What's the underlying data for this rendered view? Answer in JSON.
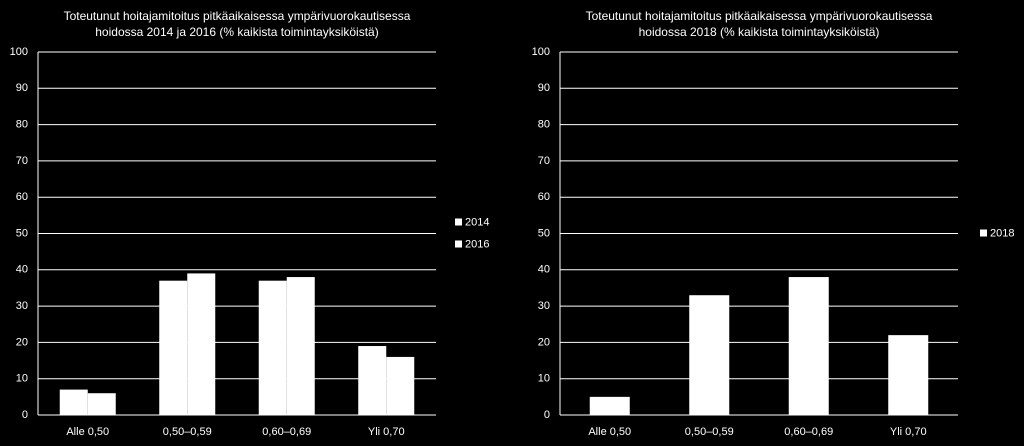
{
  "chart_data": [
    {
      "type": "bar",
      "title": [
        "Toteutunut hoitajamitoitus pitkäaikaisessa ympärivuorokautisessa",
        "hoidossa  2014 ja 2016 (% kaikista toimintayksiköistä)"
      ],
      "categories": [
        "Alle 0,50",
        "0,50–0,59",
        "0,60–0,69",
        "Yli 0,70"
      ],
      "series": [
        {
          "name": "2014",
          "color": "#ffffff",
          "values": [
            7,
            37,
            37,
            19
          ]
        },
        {
          "name": "2016",
          "color": "#ffffff",
          "values": [
            6,
            39,
            38,
            16
          ]
        }
      ],
      "ylim": [
        0,
        100
      ],
      "yticks": [
        0,
        10,
        20,
        30,
        40,
        50,
        60,
        70,
        80,
        90,
        100
      ],
      "grid": true,
      "legend": "right"
    },
    {
      "type": "bar",
      "title": [
        "Toteutunut hoitajamitoitus pitkäaikaisessa ympärivuorokautisessa",
        "hoidossa  2018 (% kaikista toimintayksiköistä)"
      ],
      "categories": [
        "Alle 0,50",
        "0,50–0,59",
        "0,60–0,69",
        "Yli 0,70"
      ],
      "series": [
        {
          "name": "2018",
          "color": "#ffffff",
          "values": [
            5,
            33,
            38,
            22
          ]
        }
      ],
      "ylim": [
        0,
        100
      ],
      "yticks": [
        0,
        10,
        20,
        30,
        40,
        50,
        60,
        70,
        80,
        90,
        100
      ],
      "grid": true,
      "legend": "right"
    }
  ]
}
